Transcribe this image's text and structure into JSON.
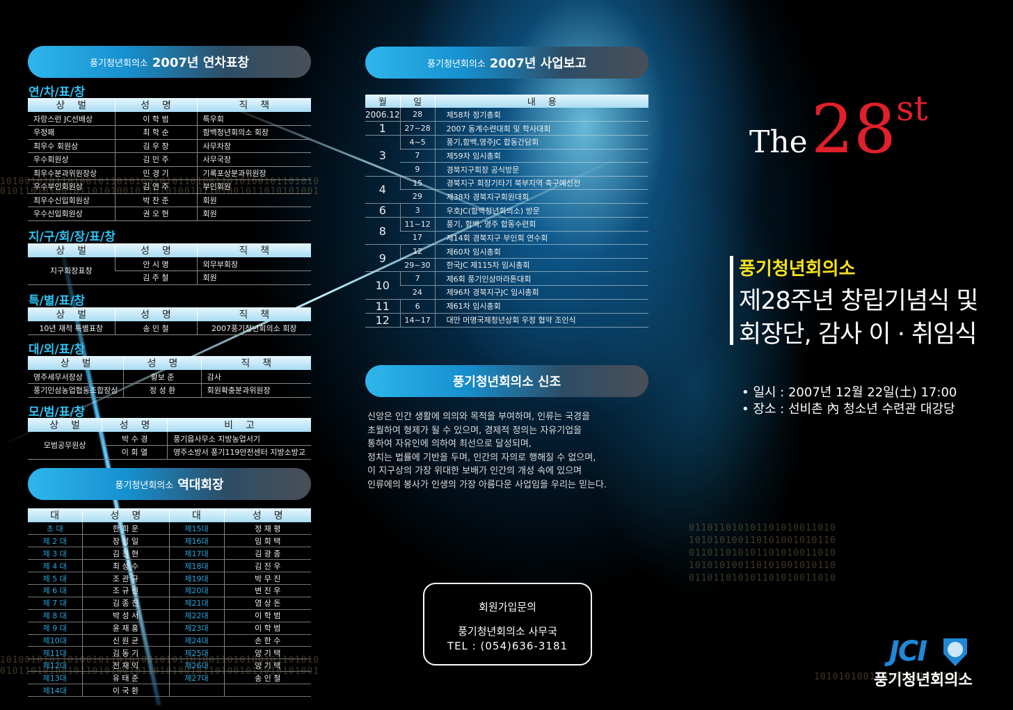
{
  "colors": {
    "accent": "#2ec4f5",
    "title_red": "#e0202a",
    "title_yellow": "#f5e21a",
    "jci_blue": "#1e88d6"
  },
  "awards": {
    "header": {
      "org": "풍기청년회의소",
      "title": "2007년 연차표창"
    },
    "sections": [
      {
        "title": "연/차/표/창",
        "columns": [
          "상벌",
          "성명",
          "직책"
        ],
        "rows": [
          [
            "자랑스런 JC선배상",
            "이 학 범",
            "특우회"
          ],
          [
            "우정패",
            "최 학 순",
            "함백청년회의소 회장"
          ],
          [
            "최우수 회원상",
            "김 우 창",
            "사무차장"
          ],
          [
            "우수회원상",
            "김 민 주",
            "사무국장"
          ],
          [
            "최우수분과위원장상",
            "민 경 기",
            "기록포상분과위원장"
          ],
          [
            "우수부인회원상",
            "김 연 주",
            "부인회원"
          ],
          [
            "최우수신입회원상",
            "박 찬 준",
            "회원"
          ],
          [
            "우수신입회원상",
            "권 오 현",
            "회원"
          ]
        ]
      },
      {
        "title": "지/구/회/장/표/창",
        "columns": [
          "상벌",
          "성명",
          "직책"
        ],
        "group": "지구회장표창",
        "rows": [
          [
            "안 시 명",
            "외무부회장"
          ],
          [
            "김 주 철",
            "회원"
          ]
        ]
      },
      {
        "title": "특/별/표/창",
        "columns": [
          "상벌",
          "성명",
          "직책"
        ],
        "rows": [
          [
            "10년 재적 특별표창",
            "송 인 철",
            "2007풍기청년회의소 회장"
          ]
        ]
      },
      {
        "title": "대/외/표/창",
        "columns": [
          "상벌",
          "성명",
          "직책"
        ],
        "rows": [
          [
            "영주세무서장상",
            "황보 준",
            "감사"
          ],
          [
            "풍기인삼농업협동조합장상",
            "정 성 환",
            "회원확충분과위원장"
          ]
        ]
      },
      {
        "title": "모/범/표/창",
        "columns": [
          "상벌",
          "성명",
          "비고"
        ],
        "group": "모범공무원상",
        "rows": [
          [
            "박 수 경",
            "풍기읍사무소 지방농업서기"
          ],
          [
            "이 회 열",
            "영주소방서 풍기119안전센터 지방소방교"
          ]
        ]
      }
    ]
  },
  "presidents": {
    "header": {
      "org": "풍기청년회의소",
      "title": "역대회장"
    },
    "columns": [
      "대",
      "성명",
      "대",
      "성명"
    ],
    "left": [
      [
        "초 대",
        "한 희 운"
      ],
      [
        "제 2 대",
        "장 정 일"
      ],
      [
        "제 3 대",
        "김 진 현"
      ],
      [
        "제 4 대",
        "최 성 수"
      ],
      [
        "제 5 대",
        "조 관 규"
      ],
      [
        "제 6 대",
        "조 규 린"
      ],
      [
        "제 7 대",
        "김 종 진"
      ],
      [
        "제 8 대",
        "박 성 서"
      ],
      [
        "제 9 대",
        "윤 재 홍"
      ],
      [
        "제10대",
        "신 원 균"
      ],
      [
        "제11대",
        "김 동 기"
      ],
      [
        "제12대",
        "전 재 익"
      ],
      [
        "제13대",
        "유 태 준"
      ],
      [
        "제14대",
        "이 국 환"
      ]
    ],
    "right": [
      [
        "제15대",
        "정 재 평"
      ],
      [
        "제16대",
        "임 희 택"
      ],
      [
        "제17대",
        "김 광 종"
      ],
      [
        "제18대",
        "김 진 우"
      ],
      [
        "제19대",
        "박 무 진"
      ],
      [
        "제20대",
        "변 진 우"
      ],
      [
        "제21대",
        "염 상 돈"
      ],
      [
        "제22대",
        "이 학 범"
      ],
      [
        "제23대",
        "이 학 범"
      ],
      [
        "제24대",
        "손 한 수"
      ],
      [
        "제25대",
        "양 기 택"
      ],
      [
        "제26대",
        "양 기 택"
      ],
      [
        "제27대",
        "송 인 철"
      ],
      [
        "",
        ""
      ]
    ]
  },
  "report": {
    "header": {
      "org": "풍기청년회의소",
      "title": "2007년 사업보고"
    },
    "columns": [
      "월",
      "일",
      "내용"
    ],
    "months": [
      {
        "month": "2006.12",
        "items": [
          [
            "28",
            "제58차 정기총회"
          ]
        ]
      },
      {
        "month": "1",
        "items": [
          [
            "27~28",
            "2007 동계수련대회 및 학사대회"
          ]
        ]
      },
      {
        "month": "3",
        "items": [
          [
            "4~5",
            "풍기,함백,영주JC 합동간담회"
          ],
          [
            "7",
            "제59차 임시총회"
          ],
          [
            "9",
            "경북지구회장 공식방문"
          ]
        ]
      },
      {
        "month": "4",
        "items": [
          [
            "15",
            "경북지구 회장기타기 북부지역 축구예선전"
          ],
          [
            "29",
            "제38차 경북지구회원대회"
          ]
        ]
      },
      {
        "month": "6",
        "items": [
          [
            "3",
            "우호JC(함백청년회의소) 방문"
          ]
        ]
      },
      {
        "month": "8",
        "items": [
          [
            "11~12",
            "풍기, 함백, 영주 합동수련회"
          ],
          [
            "17",
            "제14회 경북지구 부인회 연수회"
          ]
        ]
      },
      {
        "month": "9",
        "items": [
          [
            "12",
            "제60차 임시총회"
          ],
          [
            "29~30",
            "한국JC 제115차 임시총회"
          ]
        ]
      },
      {
        "month": "10",
        "items": [
          [
            "7",
            "제6회 풍기인삼마라톤대회"
          ],
          [
            "24",
            "제96차 경북지구JC 임시총회"
          ]
        ]
      },
      {
        "month": "11",
        "items": [
          [
            "6",
            "제61차 임시총회"
          ]
        ]
      },
      {
        "month": "12",
        "items": [
          [
            "14~17",
            "대만 머명국제청년상회 우정 협약 조인식"
          ]
        ]
      }
    ]
  },
  "creed": {
    "header": "풍기청년회의소 신조",
    "lines": [
      "신앙은 인간 생활에 의의와 목적을 부여하며, 인류는 국경을",
      "초월하여 형제가 될 수 있으며, 경제적 정의는 자유기업을",
      "통하여 자유인에 의하여 최선으로 달성되며,",
      "정치는 법률에 기반을 두며, 인간의 자의로 행해질 수 없으며,",
      "이 지구상의 가장 위대한 보배가 인간의 개성 속에 있으며",
      "인류에의 봉사가 인생의 가장 아름다운 사업임을 우리는 믿는다."
    ]
  },
  "contact": {
    "title": "회원가입문의",
    "office": "풍기청년회의소 사무국",
    "tel": "TEL : (054)636-3181"
  },
  "event": {
    "the": "The",
    "number": "28",
    "suffix": "st",
    "org": "풍기청년회의소",
    "title_line1": "제28주년 창립기념식 및",
    "title_line2": "회장단, 감사 이 · 취임식",
    "date": "• 일시 : 2007년 12월 22일(土) 17:00",
    "place": "• 장소 : 선비촌 內 청소년 수련관 대강당"
  },
  "logo": {
    "jci": "JCI",
    "org": "풍기청년회의소"
  },
  "binary": [
    "1010010101101001011010100101011010011010100101101010",
    "0101101010010110101001011010100101101001011010101001",
    "011011010101101010011010",
    "101010100110101001010110"
  ]
}
